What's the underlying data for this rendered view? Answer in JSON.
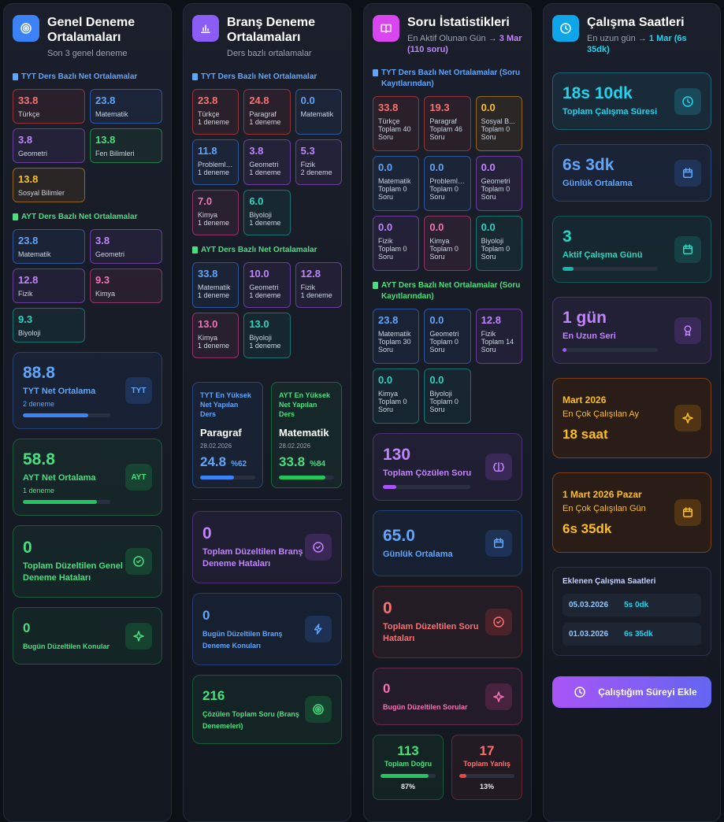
{
  "genel": {
    "title": "Genel Deneme Ortalamaları",
    "subtitle": "Son 3 genel deneme",
    "tyt": {
      "label": "TYT Ders Bazlı Net Ortalamalar",
      "tiles": [
        {
          "value": "33.8",
          "name": "Türkçe",
          "color": "red"
        },
        {
          "value": "23.8",
          "name": "Matematik",
          "color": "blue"
        },
        {
          "value": "3.8",
          "name": "Geometri",
          "color": "purple"
        },
        {
          "value": "13.8",
          "name": "Fen Bilimleri",
          "color": "green"
        },
        {
          "value": "13.8",
          "name": "Sosyal Bilimler",
          "color": "orange"
        }
      ]
    },
    "ayt": {
      "label": "AYT Ders Bazlı Net Ortalamalar",
      "tiles": [
        {
          "value": "23.8",
          "name": "Matematik",
          "color": "blue"
        },
        {
          "value": "3.8",
          "name": "Geometri",
          "color": "purple"
        },
        {
          "value": "12.8",
          "name": "Fizik",
          "color": "purple"
        },
        {
          "value": "9.3",
          "name": "Kimya",
          "color": "pink"
        },
        {
          "value": "9.3",
          "name": "Biyoloji",
          "color": "teal"
        }
      ]
    },
    "cards": [
      {
        "value": "88.8",
        "label": "TYT Net Ortalama",
        "sub": "2 deneme",
        "badge": "TYT",
        "color": "blue"
      },
      {
        "value": "58.8",
        "label": "AYT Net Ortalama",
        "sub": "1 deneme",
        "badge": "AYT",
        "color": "green"
      },
      {
        "value": "0",
        "label": "Toplam Düzeltilen Genel Deneme Hataları",
        "color": "green"
      },
      {
        "value": "0",
        "label": "Bugün Düzeltilen Konular",
        "color": "green"
      }
    ]
  },
  "brans": {
    "title": "Branş Deneme Ortalamaları",
    "subtitle": "Ders bazlı ortalamalar",
    "tyt": {
      "label": "TYT Ders Bazlı Net Ortalamalar",
      "tiles": [
        {
          "value": "23.8",
          "name": "Türkçe",
          "sub": "1 deneme",
          "color": "red"
        },
        {
          "value": "24.8",
          "name": "Paragraf",
          "sub": "1 deneme",
          "color": "red"
        },
        {
          "value": "0.0",
          "name": "Matematik",
          "color": "blue"
        },
        {
          "value": "11.8",
          "name": "Problemleri",
          "sub": "1 deneme",
          "color": "blue"
        },
        {
          "value": "3.8",
          "name": "Geometri",
          "sub": "1 deneme",
          "color": "purple"
        },
        {
          "value": "5.3",
          "name": "Fizik",
          "sub": "2 deneme",
          "color": "purple"
        },
        {
          "value": "7.0",
          "name": "Kimya",
          "sub": "1 deneme",
          "color": "pink"
        },
        {
          "value": "6.0",
          "name": "Biyoloji",
          "sub": "1 deneme",
          "color": "teal"
        }
      ]
    },
    "ayt": {
      "label": "AYT Ders Bazlı Net Ortalamalar",
      "tiles": [
        {
          "value": "33.8",
          "name": "Matematik",
          "sub": "1 deneme",
          "color": "blue"
        },
        {
          "value": "10.0",
          "name": "Geometri",
          "sub": "1 deneme",
          "color": "purple"
        },
        {
          "value": "12.8",
          "name": "Fizik",
          "sub": "1 deneme",
          "color": "purple"
        },
        {
          "value": "13.0",
          "name": "Kimya",
          "sub": "1 deneme",
          "color": "pink"
        },
        {
          "value": "13.0",
          "name": "Biyoloji",
          "sub": "1 deneme",
          "color": "teal"
        }
      ]
    },
    "best": [
      {
        "label": "TYT En Yüksek Net Yapılan Ders",
        "name": "Paragraf",
        "date": "28.02.2026",
        "value": "24.8",
        "percent": "%62",
        "color": "blue"
      },
      {
        "label": "AYT En Yüksek Net Yapılan Ders",
        "name": "Matematik",
        "date": "28.02.2026",
        "value": "33.8",
        "percent": "%84",
        "color": "green"
      }
    ],
    "cards": [
      {
        "value": "0",
        "label": "Toplam Düzeltilen Branş Deneme Hataları",
        "color": "purple"
      },
      {
        "value": "0",
        "label": "Bugün Düzeltilen Branş Deneme Konuları",
        "color": "blue"
      },
      {
        "value": "216",
        "label": "Çözülen Toplam Soru (Branş Denemeleri)",
        "color": "green"
      }
    ]
  },
  "soru": {
    "title": "Soru İstatistikleri",
    "subtitle": "En Aktif Olunan Gün →",
    "highlight": "3 Mar (110 soru)",
    "tyt": {
      "label": "TYT Ders Bazlı Net Ortalamalar (Soru Kayıtlarından)",
      "tiles": [
        {
          "value": "33.8",
          "name": "Türkçe",
          "sub": "Toplam 40 Soru",
          "color": "red"
        },
        {
          "value": "19.3",
          "name": "Paragraf",
          "sub": "Toplam 46 Soru",
          "color": "red"
        },
        {
          "value": "0.0",
          "name": "Sosyal B...",
          "sub": "Toplam 0 Soru",
          "color": "orange"
        },
        {
          "value": "0.0",
          "name": "Matematik",
          "sub": "Toplam 0 Soru",
          "color": "blue"
        },
        {
          "value": "0.0",
          "name": "Problemleri",
          "sub": "Toplam 0 Soru",
          "color": "blue"
        },
        {
          "value": "0.0",
          "name": "Geometri",
          "sub": "Toplam 0 Soru",
          "color": "purple"
        },
        {
          "value": "0.0",
          "name": "Fizik",
          "sub": "Toplam 0 Soru",
          "color": "purple"
        },
        {
          "value": "0.0",
          "name": "Kimya",
          "sub": "Toplam 0 Soru",
          "color": "pink"
        },
        {
          "value": "0.0",
          "name": "Biyoloji",
          "sub": "Toplam 0 Soru",
          "color": "teal"
        }
      ]
    },
    "ayt": {
      "label": "AYT Ders Bazlı Net Ortalamalar (Soru Kayıtlarından)",
      "tiles": [
        {
          "value": "23.8",
          "name": "Matematik",
          "sub": "Toplam 30 Soru",
          "color": "blue"
        },
        {
          "value": "0.0",
          "name": "Geometri",
          "sub": "Toplam 0 Soru",
          "color": "blue"
        },
        {
          "value": "12.8",
          "name": "Fizik",
          "sub": "Toplam 14 Soru",
          "color": "purple"
        },
        {
          "value": "0.0",
          "name": "Kimya",
          "sub": "Toplam 0 Soru",
          "color": "teal"
        },
        {
          "value": "0.0",
          "name": "Biyoloji",
          "sub": "Toplam 0 Soru",
          "color": "teal"
        }
      ]
    },
    "cards": [
      {
        "value": "130",
        "label": "Toplam Çözülen Soru",
        "color": "purple"
      },
      {
        "value": "65.0",
        "label": "Günlük Ortalama",
        "color": "blue"
      },
      {
        "value": "0",
        "label": "Toplam Düzeltilen Soru Hataları",
        "color": "red"
      },
      {
        "value": "0",
        "label": "Bugün Düzeltilen Sorular",
        "color": "pink"
      }
    ],
    "totals": [
      {
        "value": "113",
        "label": "Toplam Doğru",
        "percent": "87%",
        "color": "green"
      },
      {
        "value": "17",
        "label": "Toplam Yanlış",
        "percent": "13%",
        "color": "red"
      }
    ]
  },
  "calisma": {
    "title": "Çalışma Saatleri",
    "subtitle": "En uzun gün →",
    "highlight": "1 Mar (6s 35dk)",
    "cards": [
      {
        "value": "18s 10dk",
        "label": "Toplam Çalışma Süresi",
        "color": "cyan"
      },
      {
        "value": "6s 3dk",
        "label": "Günlük Ortalama",
        "color": "blue"
      },
      {
        "value": "3",
        "label": "Aktif Çalışma Günü",
        "color": "teal"
      },
      {
        "value": "1 gün",
        "label": "En Uzun Seri",
        "color": "purple"
      }
    ],
    "best": [
      {
        "title": "Mart 2026",
        "label": "En Çok Çalışılan Ay",
        "value": "18 saat"
      },
      {
        "title": "1 Mart 2026 Pazar",
        "label": "En Çok Çalışılan Gün",
        "value": "6s 35dk"
      }
    ],
    "eklenen": {
      "title": "Eklenen Çalışma Saatleri",
      "rows": [
        {
          "date": "05.03.2026",
          "duration": "5s 0dk"
        },
        {
          "date": "01.03.2026",
          "duration": "6s 35dk"
        }
      ]
    },
    "button": "Çalıştığım Süreyi Ekle"
  }
}
